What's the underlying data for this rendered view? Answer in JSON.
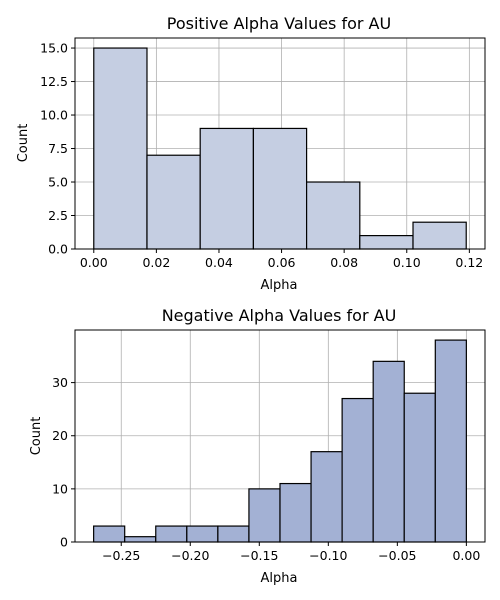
{
  "chart_data": [
    {
      "type": "bar",
      "title": "Positive Alpha Values for AU",
      "xlabel": "Alpha",
      "ylabel": "Count",
      "bins": [
        {
          "x0": 0.0,
          "x1": 0.017,
          "count": 15
        },
        {
          "x0": 0.017,
          "x1": 0.034,
          "count": 7
        },
        {
          "x0": 0.034,
          "x1": 0.051,
          "count": 9
        },
        {
          "x0": 0.051,
          "x1": 0.068,
          "count": 9
        },
        {
          "x0": 0.068,
          "x1": 0.085,
          "count": 5
        },
        {
          "x0": 0.085,
          "x1": 0.102,
          "count": 1
        },
        {
          "x0": 0.102,
          "x1": 0.119,
          "count": 2
        }
      ],
      "xlim": [
        -0.006,
        0.125
      ],
      "ylim": [
        0,
        15.75
      ],
      "xticks": [
        0.0,
        0.02,
        0.04,
        0.06,
        0.08,
        0.1,
        0.12
      ],
      "xtick_labels": [
        "0.00",
        "0.02",
        "0.04",
        "0.06",
        "0.08",
        "0.10",
        "0.12"
      ],
      "yticks": [
        0,
        2.5,
        5,
        7.5,
        10,
        12.5,
        15
      ],
      "ytick_labels": [
        "0.0",
        "2.5",
        "5.0",
        "7.5",
        "10.0",
        "12.5",
        "15.0"
      ],
      "grid": true,
      "bar_color": "#c5cee2"
    },
    {
      "type": "bar",
      "title": "Negative Alpha Values for AU",
      "xlabel": "Alpha",
      "ylabel": "Count",
      "bins": [
        {
          "x0": -0.27,
          "x1": -0.2475,
          "count": 3
        },
        {
          "x0": -0.2475,
          "x1": -0.225,
          "count": 1
        },
        {
          "x0": -0.225,
          "x1": -0.2025,
          "count": 3
        },
        {
          "x0": -0.2025,
          "x1": -0.18,
          "count": 3
        },
        {
          "x0": -0.18,
          "x1": -0.1575,
          "count": 3
        },
        {
          "x0": -0.1575,
          "x1": -0.135,
          "count": 10
        },
        {
          "x0": -0.135,
          "x1": -0.1125,
          "count": 11
        },
        {
          "x0": -0.1125,
          "x1": -0.09,
          "count": 17
        },
        {
          "x0": -0.09,
          "x1": -0.0675,
          "count": 27
        },
        {
          "x0": -0.0675,
          "x1": -0.045,
          "count": 34
        },
        {
          "x0": -0.045,
          "x1": -0.0225,
          "count": 28
        },
        {
          "x0": -0.0225,
          "x1": 0.0,
          "count": 38
        }
      ],
      "xlim": [
        -0.2835,
        0.0135
      ],
      "ylim": [
        0,
        39.9
      ],
      "xticks": [
        -0.25,
        -0.2,
        -0.15,
        -0.1,
        -0.05,
        0.0
      ],
      "xtick_labels": [
        "−0.25",
        "−0.20",
        "−0.15",
        "−0.10",
        "−0.05",
        "0.00"
      ],
      "yticks": [
        0,
        10,
        20,
        30
      ],
      "ytick_labels": [
        "0",
        "10",
        "20",
        "30"
      ],
      "grid": true,
      "bar_color": "#a3b1d4"
    }
  ]
}
